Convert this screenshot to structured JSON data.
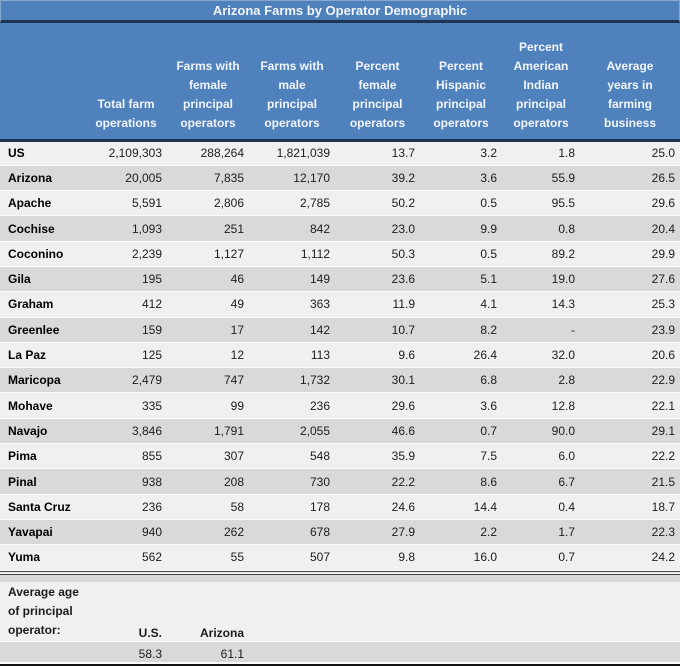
{
  "colors": {
    "header-blue": "#4f81bd",
    "navy": "#1d3553",
    "row-light": "#f0f0f0",
    "row-dark": "#d9d9d9",
    "footer-bg": "#d9d9d9",
    "text-dark": "#1c1c1c",
    "header-text": "#f2f5fa"
  },
  "chart_data": {
    "type": "table",
    "title": "Arizona Farms by Operator Demographic",
    "columns": [
      {
        "label": "",
        "display": ""
      },
      {
        "label": "Total farm operations",
        "display": "Total farm\noperations"
      },
      {
        "label": "Farms with female principal operators",
        "display": "Farms with\nfemale\nprincipal\noperators"
      },
      {
        "label": "Farms with male principal operators",
        "display": "Farms with\nmale\nprincipal\noperators"
      },
      {
        "label": "Percent female principal operators",
        "display": "Percent\nfemale\nprincipal\noperators"
      },
      {
        "label": "Percent Hispanic principal operators",
        "display": "Percent\nHispanic\nprincipal\noperators"
      },
      {
        "label": "Percent American Indian principal operators",
        "display": "Percent\nAmerican\nIndian\nprincipal\noperators"
      },
      {
        "label": "Average years in farming business",
        "display": "Average\nyears in\nfarming\nbusiness"
      }
    ],
    "rows": [
      {
        "label": "US",
        "values": [
          "2,109,303",
          "288,264",
          "1,821,039",
          "13.7",
          "3.2",
          "1.8",
          "25.0"
        ]
      },
      {
        "label": "Arizona",
        "values": [
          "20,005",
          "7,835",
          "12,170",
          "39.2",
          "3.6",
          "55.9",
          "26.5"
        ]
      },
      {
        "label": "Apache",
        "values": [
          "5,591",
          "2,806",
          "2,785",
          "50.2",
          "0.5",
          "95.5",
          "29.6"
        ]
      },
      {
        "label": "Cochise",
        "values": [
          "1,093",
          "251",
          "842",
          "23.0",
          "9.9",
          "0.8",
          "20.4"
        ]
      },
      {
        "label": "Coconino",
        "values": [
          "2,239",
          "1,127",
          "1,112",
          "50.3",
          "0.5",
          "89.2",
          "29.9"
        ]
      },
      {
        "label": "Gila",
        "values": [
          "195",
          "46",
          "149",
          "23.6",
          "5.1",
          "19.0",
          "27.6"
        ]
      },
      {
        "label": "Graham",
        "values": [
          "412",
          "49",
          "363",
          "11.9",
          "4.1",
          "14.3",
          "25.3"
        ]
      },
      {
        "label": "Greenlee",
        "values": [
          "159",
          "17",
          "142",
          "10.7",
          "8.2",
          "-",
          "23.9"
        ]
      },
      {
        "label": "La Paz",
        "values": [
          "125",
          "12",
          "113",
          "9.6",
          "26.4",
          "32.0",
          "20.6"
        ]
      },
      {
        "label": "Maricopa",
        "values": [
          "2,479",
          "747",
          "1,732",
          "30.1",
          "6.8",
          "2.8",
          "22.9"
        ]
      },
      {
        "label": "Mohave",
        "values": [
          "335",
          "99",
          "236",
          "29.6",
          "3.6",
          "12.8",
          "22.1"
        ]
      },
      {
        "label": "Navajo",
        "values": [
          "3,846",
          "1,791",
          "2,055",
          "46.6",
          "0.7",
          "90.0",
          "29.1"
        ]
      },
      {
        "label": "Pima",
        "values": [
          "855",
          "307",
          "548",
          "35.9",
          "7.5",
          "6.0",
          "22.2"
        ]
      },
      {
        "label": "Pinal",
        "values": [
          "938",
          "208",
          "730",
          "22.2",
          "8.6",
          "6.7",
          "21.5"
        ]
      },
      {
        "label": "Santa Cruz",
        "values": [
          "236",
          "58",
          "178",
          "24.6",
          "14.4",
          "0.4",
          "18.7"
        ]
      },
      {
        "label": "Yavapai",
        "values": [
          "940",
          "262",
          "678",
          "27.9",
          "2.2",
          "1.7",
          "22.3"
        ]
      },
      {
        "label": "Yuma",
        "values": [
          "562",
          "55",
          "507",
          "9.8",
          "16.0",
          "0.7",
          "24.2"
        ]
      }
    ],
    "footer": {
      "label": "Average age of principal operator:",
      "label_display": "Average age\nof principal\noperator:",
      "entries": [
        {
          "name": "U.S.",
          "value": "58.3"
        },
        {
          "name": "Arizona",
          "value": "61.1"
        }
      ]
    }
  }
}
